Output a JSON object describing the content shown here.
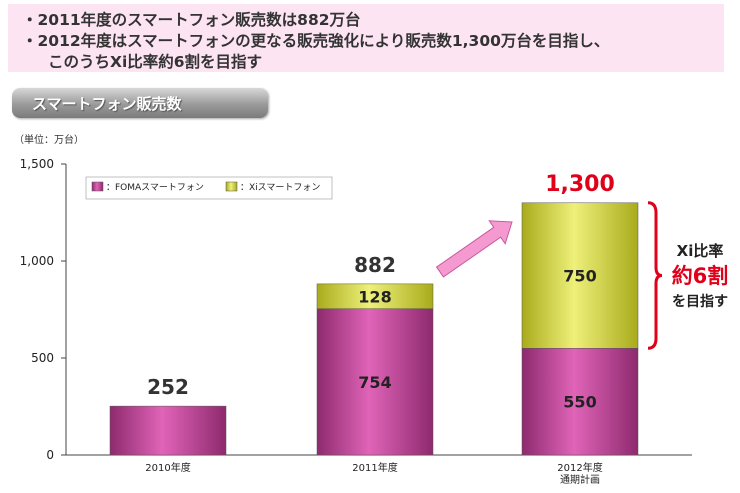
{
  "summary": {
    "line1": "・2011年度のスマートフォン販売数は882万台",
    "line2": "・2012年度はスマートフォンの更なる販売強化により販売数1,300万台を目指し、",
    "line3": "このうちXi比率約6割を目指す"
  },
  "section_title": "スマートフォン販売数",
  "unit_label": "（単位：万台）",
  "annotation": {
    "line1": "Xi比率",
    "line2": "約6割",
    "line3": "を目指す"
  },
  "colors": {
    "foma": "#b03c8c",
    "xi": "#c9cc3a",
    "highlight": "#e0001a",
    "arrow": "#f49ad0"
  },
  "chart_data": {
    "type": "bar",
    "stacked": true,
    "categories": [
      "2010年度",
      "2011年度",
      "2012年度\n通期計画"
    ],
    "series": [
      {
        "name": "：FOMAスマートフォン",
        "values": [
          252,
          754,
          550
        ]
      },
      {
        "name": "：Xiスマートフォン",
        "values": [
          0,
          128,
          750
        ]
      }
    ],
    "segment_labels": [
      [
        null,
        "754",
        "550"
      ],
      [
        null,
        "128",
        "750"
      ]
    ],
    "totals": [
      "252",
      "882",
      "1,300"
    ],
    "ylim": [
      0,
      1500
    ],
    "yticks": [
      0,
      500,
      1000,
      1500
    ],
    "ytick_labels": [
      "0",
      "500",
      "1,000",
      "1,500"
    ],
    "grid": false,
    "legend_position": "top-left"
  }
}
